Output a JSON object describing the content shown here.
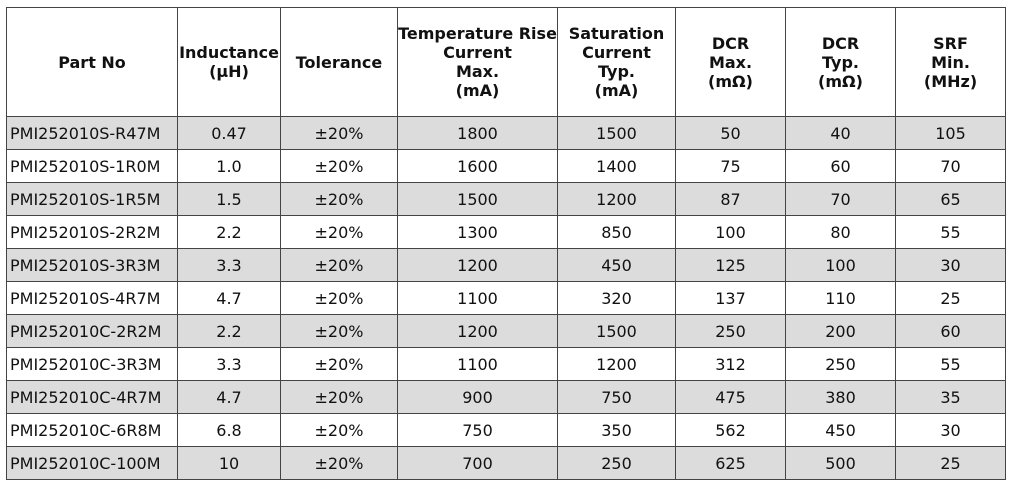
{
  "table": {
    "headers": [
      [
        "Part No"
      ],
      [
        "Inductance",
        "(μH)"
      ],
      [
        "Tolerance"
      ],
      [
        "Temperature Rise",
        "Current",
        "Max.",
        "(mA)"
      ],
      [
        "Saturation",
        "Current",
        "Typ.",
        "(mA)"
      ],
      [
        "DCR",
        "Max.",
        "(mΩ)"
      ],
      [
        "DCR",
        "Typ.",
        "(mΩ)"
      ],
      [
        "SRF",
        "Min.",
        "(MHz)"
      ]
    ],
    "rows": [
      [
        "PMI252010S-R47M",
        "0.47",
        "±20%",
        "1800",
        "1500",
        "50",
        "40",
        "105"
      ],
      [
        "PMI252010S-1R0M",
        "1.0",
        "±20%",
        "1600",
        "1400",
        "75",
        "60",
        "70"
      ],
      [
        "PMI252010S-1R5M",
        "1.5",
        "±20%",
        "1500",
        "1200",
        "87",
        "70",
        "65"
      ],
      [
        "PMI252010S-2R2M",
        "2.2",
        "±20%",
        "1300",
        "850",
        "100",
        "80",
        "55"
      ],
      [
        "PMI252010S-3R3M",
        "3.3",
        "±20%",
        "1200",
        "450",
        "125",
        "100",
        "30"
      ],
      [
        "PMI252010S-4R7M",
        "4.7",
        "±20%",
        "1100",
        "320",
        "137",
        "110",
        "25"
      ],
      [
        "PMI252010C-2R2M",
        "2.2",
        "±20%",
        "1200",
        "1500",
        "250",
        "200",
        "60"
      ],
      [
        "PMI252010C-3R3M",
        "3.3",
        "±20%",
        "1100",
        "1200",
        "312",
        "250",
        "55"
      ],
      [
        "PMI252010C-4R7M",
        "4.7",
        "±20%",
        "900",
        "750",
        "475",
        "380",
        "35"
      ],
      [
        "PMI252010C-6R8M",
        "6.8",
        "±20%",
        "750",
        "350",
        "562",
        "450",
        "30"
      ],
      [
        "PMI252010C-100M",
        "10",
        "±20%",
        "700",
        "250",
        "625",
        "500",
        "25"
      ]
    ],
    "shaded_row_color": "#dcdcdc"
  }
}
